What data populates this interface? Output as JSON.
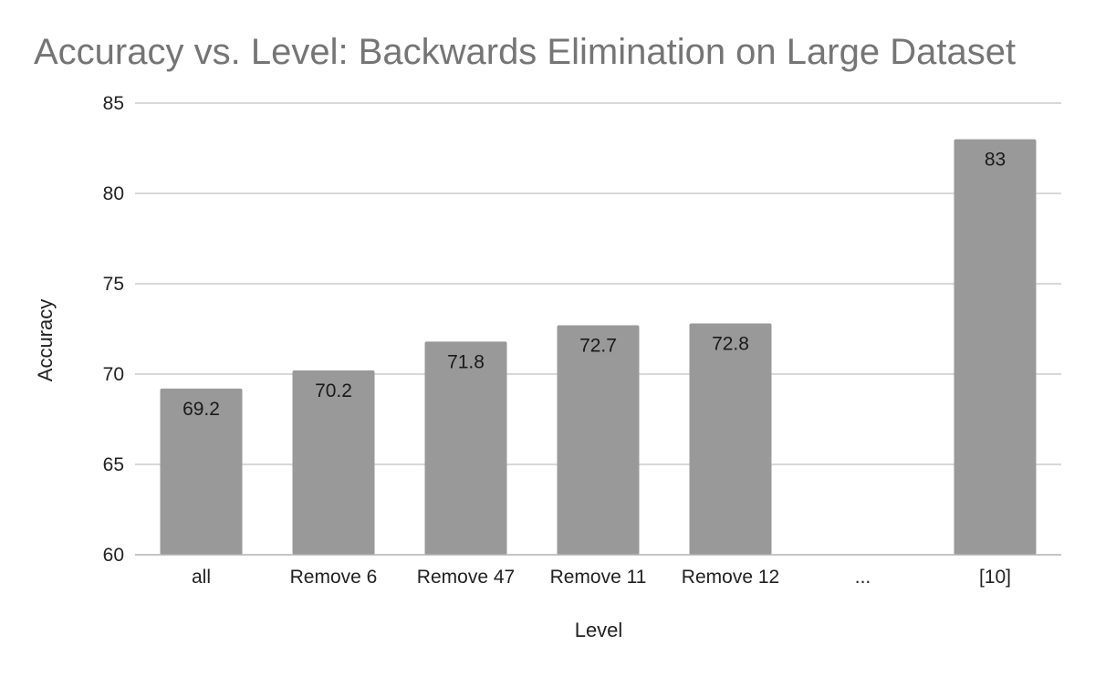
{
  "chart_data": {
    "type": "bar",
    "title": "Accuracy vs. Level: Backwards Elimination on Large Dataset",
    "xlabel": "Level",
    "ylabel": "Accuracy",
    "categories": [
      "all",
      "Remove 6",
      "Remove 47",
      "Remove 11",
      "Remove 12",
      "...",
      "[10]"
    ],
    "values": [
      69.2,
      70.2,
      71.8,
      72.7,
      72.8,
      null,
      83
    ],
    "data_labels": [
      "69.2",
      "70.2",
      "71.8",
      "72.7",
      "72.8",
      "",
      "83"
    ],
    "ylim": [
      60,
      85
    ],
    "yticks": [
      60,
      65,
      70,
      75,
      80,
      85
    ],
    "grid": true,
    "legend": "none",
    "bar_color": "#999999"
  }
}
